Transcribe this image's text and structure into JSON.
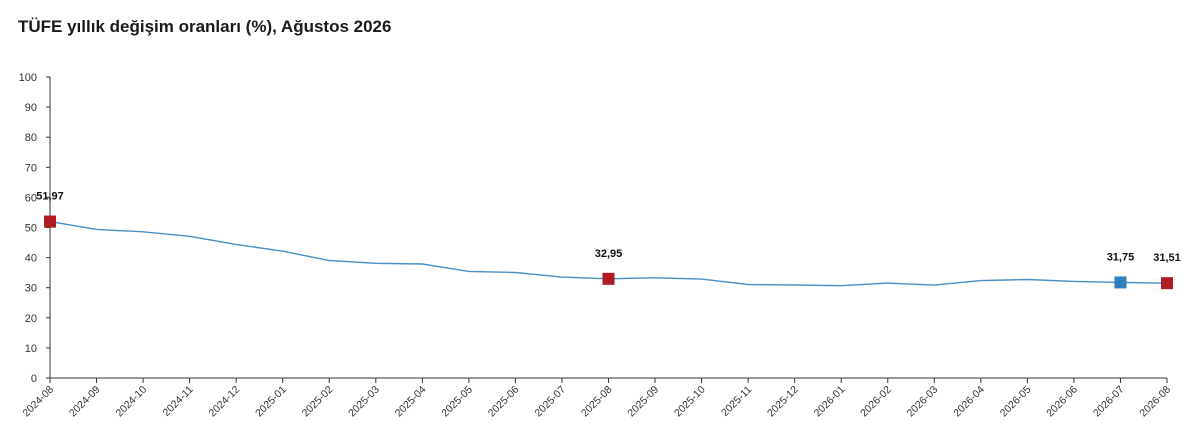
{
  "title": "TÜFE yıllık değişim oranları (%), Ağustos 2026",
  "colors": {
    "line": "#4a90c8",
    "marker_red": "#b01c22",
    "marker_blue": "#2f7ebf",
    "axis": "#333333"
  },
  "chart_data": {
    "type": "line",
    "title": "TÜFE yıllık değişim oranları (%), Ağustos 2026",
    "xlabel": "",
    "ylabel": "",
    "ylim": [
      0,
      100
    ],
    "yticks": [
      "0",
      "10",
      "20",
      "30",
      "40",
      "50",
      "60",
      "70",
      "80",
      "90",
      "100"
    ],
    "grid": false,
    "categories": [
      "2024-08",
      "2024-09",
      "2024-10",
      "2024-11",
      "2024-12",
      "2025-01",
      "2025-02",
      "2025-03",
      "2025-04",
      "2025-05",
      "2025-06",
      "2025-07",
      "2025-08",
      "2025-09",
      "2025-10",
      "2025-11",
      "2025-12",
      "2026-01",
      "2026-02",
      "2026-03",
      "2026-04",
      "2026-05",
      "2026-06",
      "2026-07",
      "2026-08"
    ],
    "series": [
      {
        "values": [
          51.97,
          49.38,
          48.58,
          47.09,
          44.38,
          42.12,
          39.05,
          38.1,
          37.86,
          35.41,
          35.05,
          33.52,
          32.95,
          33.29,
          32.87,
          31.07,
          30.89,
          30.65,
          31.53,
          30.87,
          32.37,
          32.71,
          32.1,
          31.75,
          31.51
        ]
      }
    ],
    "markers": [
      {
        "index": 0,
        "label": "51,97",
        "color": "red"
      },
      {
        "index": 12,
        "label": "32,95",
        "color": "red"
      },
      {
        "index": 23,
        "label": "31,75",
        "color": "blue"
      },
      {
        "index": 24,
        "label": "31,51",
        "color": "red"
      }
    ]
  }
}
